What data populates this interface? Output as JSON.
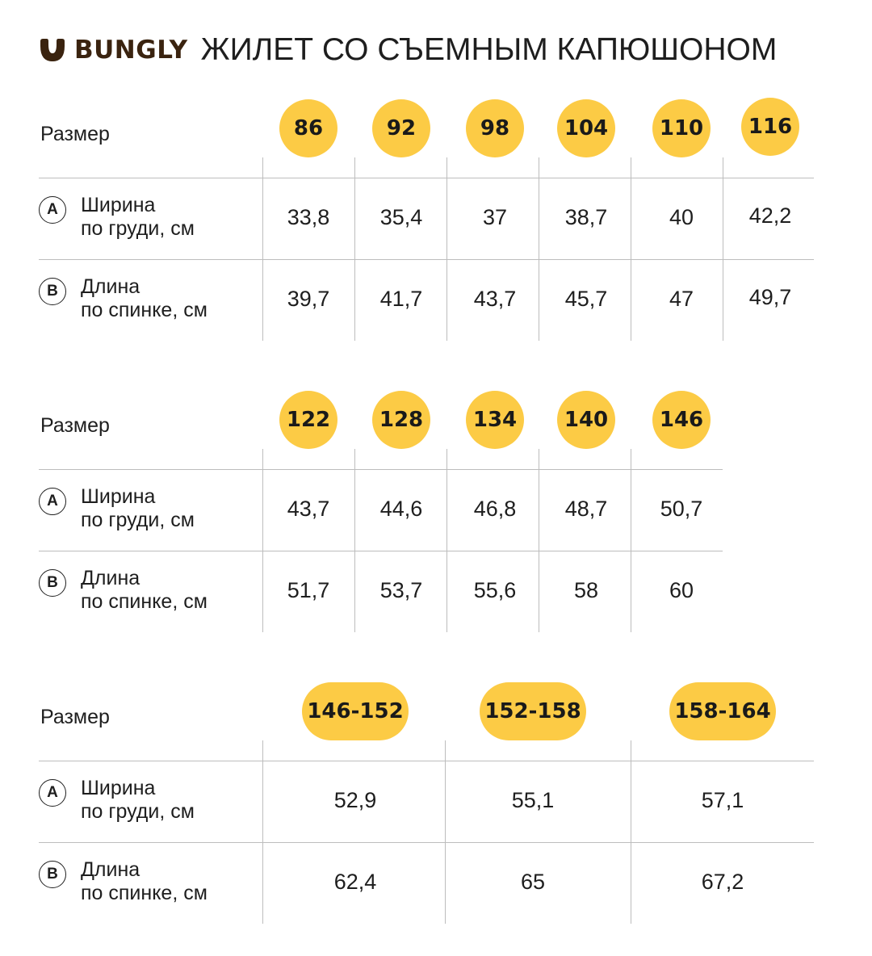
{
  "header": {
    "brand": "BUNGLY",
    "title": "ЖИЛЕТ СО СЪЕМНЫМ КАПЮШОНОМ",
    "brand_color": "#3a230f"
  },
  "accent_color": "#fccb45",
  "tables": [
    {
      "size_label": "Размер",
      "sizes": [
        "86",
        "92",
        "98",
        "104",
        "110",
        "116"
      ],
      "rows": [
        {
          "marker": "A",
          "label_line1": "Ширина",
          "label_line2": "по груди, см",
          "values": [
            "33,8",
            "35,4",
            "37",
            "38,7",
            "40",
            "42,2"
          ]
        },
        {
          "marker": "B",
          "label_line1": "Длина",
          "label_line2": "по спинке, см",
          "values": [
            "39,7",
            "41,7",
            "43,7",
            "45,7",
            "47",
            "49,7"
          ]
        }
      ]
    },
    {
      "size_label": "Размер",
      "sizes": [
        "122",
        "128",
        "134",
        "140",
        "146"
      ],
      "rows": [
        {
          "marker": "A",
          "label_line1": "Ширина",
          "label_line2": "по груди, см",
          "values": [
            "43,7",
            "44,6",
            "46,8",
            "48,7",
            "50,7"
          ]
        },
        {
          "marker": "B",
          "label_line1": "Длина",
          "label_line2": "по спинке, см",
          "values": [
            "51,7",
            "53,7",
            "55,6",
            "58",
            "60"
          ]
        }
      ]
    },
    {
      "size_label": "Размер",
      "sizes": [
        "146-152",
        "152-158",
        "158-164"
      ],
      "rows": [
        {
          "marker": "A",
          "label_line1": "Ширина",
          "label_line2": "по груди, см",
          "values": [
            "52,9",
            "55,1",
            "57,1"
          ]
        },
        {
          "marker": "B",
          "label_line1": "Длина",
          "label_line2": "по спинке, см",
          "values": [
            "62,4",
            "65",
            "67,2"
          ]
        }
      ]
    }
  ]
}
